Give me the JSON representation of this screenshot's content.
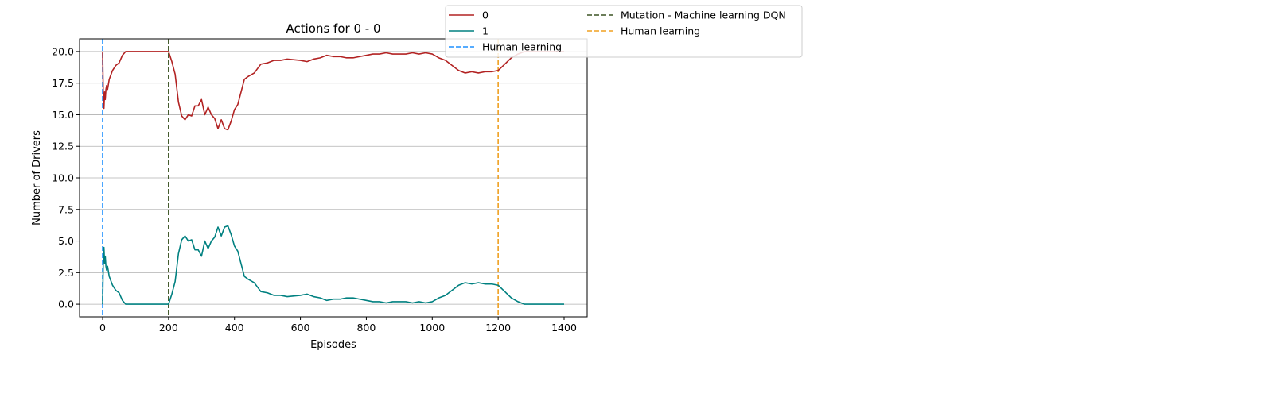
{
  "chart_data": {
    "type": "line",
    "title": "Actions for 0 - 0",
    "xlabel": "Episodes",
    "ylabel": "Number of Drivers",
    "xlim": [
      -70,
      1470
    ],
    "ylim": [
      -1.0,
      21.0
    ],
    "xticks": [
      0,
      200,
      400,
      600,
      800,
      1000,
      1200,
      1400
    ],
    "yticks": [
      0.0,
      2.5,
      5.0,
      7.5,
      10.0,
      12.5,
      15.0,
      17.5,
      20.0
    ],
    "xtick_labels": [
      "0",
      "200",
      "400",
      "600",
      "800",
      "1000",
      "1200",
      "1400"
    ],
    "ytick_labels": [
      "0.0",
      "2.5",
      "5.0",
      "7.5",
      "10.0",
      "12.5",
      "15.0",
      "17.5",
      "20.0"
    ],
    "grid": "y-major",
    "legend_placement": "upper-right-outside",
    "series": [
      {
        "name": "0",
        "color": "#b22222",
        "x": [
          0,
          2,
          4,
          6,
          8,
          10,
          12,
          15,
          20,
          30,
          40,
          50,
          60,
          70,
          80,
          100,
          120,
          140,
          160,
          180,
          200,
          210,
          220,
          230,
          240,
          250,
          260,
          270,
          280,
          290,
          300,
          310,
          320,
          330,
          340,
          350,
          360,
          370,
          380,
          390,
          400,
          410,
          420,
          430,
          440,
          460,
          480,
          500,
          520,
          540,
          560,
          600,
          620,
          640,
          660,
          680,
          700,
          720,
          740,
          760,
          780,
          800,
          820,
          840,
          860,
          880,
          900,
          920,
          940,
          960,
          980,
          1000,
          1020,
          1040,
          1060,
          1080,
          1100,
          1120,
          1140,
          1160,
          1180,
          1200,
          1220,
          1240,
          1260,
          1280,
          1300,
          1320,
          1340,
          1360,
          1380,
          1400
        ],
        "y": [
          20.0,
          16.5,
          15.5,
          16.8,
          16.2,
          17.0,
          17.3,
          17.0,
          17.8,
          18.5,
          18.9,
          19.1,
          19.7,
          20.0,
          20.0,
          20.0,
          20.0,
          20.0,
          20.0,
          20.0,
          20.0,
          19.2,
          18.2,
          16.0,
          14.9,
          14.6,
          15.0,
          14.9,
          15.7,
          15.7,
          16.2,
          15.0,
          15.6,
          15.0,
          14.7,
          13.9,
          14.6,
          13.9,
          13.8,
          14.5,
          15.4,
          15.8,
          16.8,
          17.8,
          18.0,
          18.3,
          19.0,
          19.1,
          19.3,
          19.3,
          19.4,
          19.3,
          19.2,
          19.4,
          19.5,
          19.7,
          19.6,
          19.6,
          19.5,
          19.5,
          19.6,
          19.7,
          19.8,
          19.8,
          19.9,
          19.8,
          19.8,
          19.8,
          19.9,
          19.8,
          19.9,
          19.8,
          19.5,
          19.3,
          18.9,
          18.5,
          18.3,
          18.4,
          18.3,
          18.4,
          18.4,
          18.5,
          19.0,
          19.5,
          19.8,
          20.0,
          20.0,
          20.0,
          20.0,
          20.0,
          20.0,
          20.0
        ]
      },
      {
        "name": "1",
        "color": "#008080",
        "x": [
          0,
          2,
          4,
          6,
          8,
          10,
          12,
          15,
          20,
          30,
          40,
          50,
          60,
          70,
          80,
          100,
          120,
          140,
          160,
          180,
          200,
          210,
          220,
          230,
          240,
          250,
          260,
          270,
          280,
          290,
          300,
          310,
          320,
          330,
          340,
          350,
          360,
          370,
          380,
          390,
          400,
          410,
          420,
          430,
          440,
          460,
          480,
          500,
          520,
          540,
          560,
          600,
          620,
          640,
          660,
          680,
          700,
          720,
          740,
          760,
          780,
          800,
          820,
          840,
          860,
          880,
          900,
          920,
          940,
          960,
          980,
          1000,
          1020,
          1040,
          1060,
          1080,
          1100,
          1120,
          1140,
          1160,
          1180,
          1200,
          1220,
          1240,
          1260,
          1280,
          1300,
          1320,
          1340,
          1360,
          1380,
          1400
        ],
        "y": [
          0.0,
          3.5,
          4.5,
          3.2,
          3.8,
          3.0,
          2.7,
          3.0,
          2.2,
          1.5,
          1.1,
          0.9,
          0.3,
          0.0,
          0.0,
          0.0,
          0.0,
          0.0,
          0.0,
          0.0,
          0.0,
          0.8,
          1.8,
          4.0,
          5.1,
          5.4,
          5.0,
          5.1,
          4.3,
          4.3,
          3.8,
          5.0,
          4.4,
          5.0,
          5.3,
          6.1,
          5.4,
          6.1,
          6.2,
          5.5,
          4.6,
          4.2,
          3.2,
          2.2,
          2.0,
          1.7,
          1.0,
          0.9,
          0.7,
          0.7,
          0.6,
          0.7,
          0.8,
          0.6,
          0.5,
          0.3,
          0.4,
          0.4,
          0.5,
          0.5,
          0.4,
          0.3,
          0.2,
          0.2,
          0.1,
          0.2,
          0.2,
          0.2,
          0.1,
          0.2,
          0.1,
          0.2,
          0.5,
          0.7,
          1.1,
          1.5,
          1.7,
          1.6,
          1.7,
          1.6,
          1.6,
          1.5,
          1.0,
          0.5,
          0.2,
          0.0,
          0.0,
          0.0,
          0.0,
          0.0,
          0.0,
          0.0
        ]
      }
    ],
    "vlines": [
      {
        "name": "Human learning",
        "x": 0,
        "color": "#1e90ff"
      },
      {
        "name": "Mutation - Machine learning DQN",
        "x": 200,
        "color": "#3b5323"
      },
      {
        "name": "Human learning",
        "x": 1200,
        "color": "#f0a020"
      }
    ],
    "legend": {
      "col1": [
        {
          "label": "0",
          "color": "#b22222",
          "style": "solid"
        },
        {
          "label": "1",
          "color": "#008080",
          "style": "solid"
        },
        {
          "label": "Human learning",
          "color": "#1e90ff",
          "style": "dashed"
        }
      ],
      "col2": [
        {
          "label": "Mutation - Machine learning DQN",
          "color": "#3b5323",
          "style": "dashed"
        },
        {
          "label": "Human learning",
          "color": "#f0a020",
          "style": "dashed"
        }
      ]
    }
  }
}
